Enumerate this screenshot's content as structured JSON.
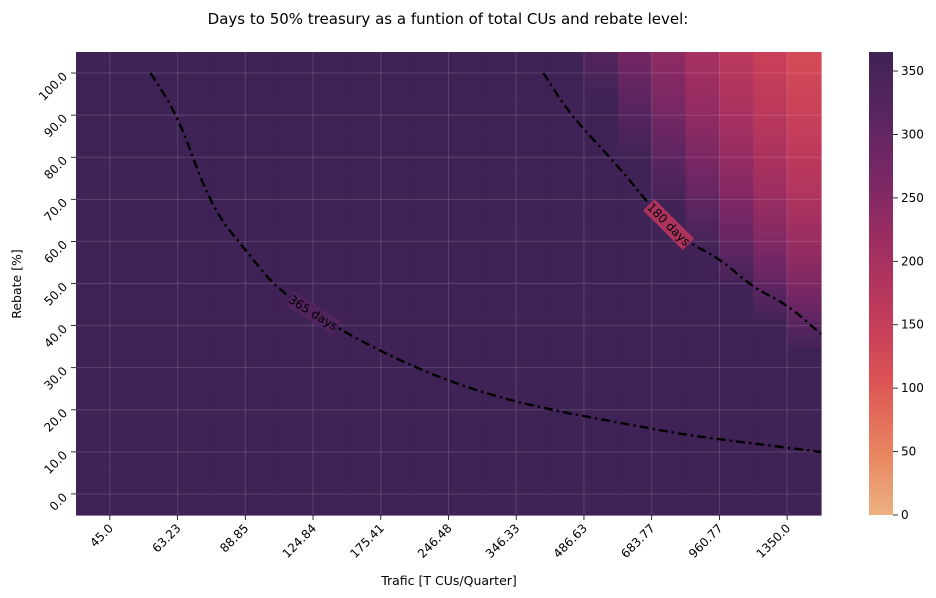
{
  "chart_data": {
    "type": "heatmap",
    "title": "Days to 50% treasury as a funtion of total CUs and rebate level:",
    "xlabel": "Trafic [T CUs/Quarter]",
    "ylabel": "Rebate [%]",
    "x_tick_labels": [
      "45.0",
      "63.23",
      "88.85",
      "124.84",
      "175.41",
      "246.48",
      "346.33",
      "486.63",
      "683.77",
      "960.77",
      "1350.0"
    ],
    "y_tick_labels": [
      "0.0",
      "10.0",
      "20.0",
      "30.0",
      "40.0",
      "50.0",
      "60.0",
      "70.0",
      "80.0",
      "90.0",
      "100.0"
    ],
    "colorbar": {
      "min": 0,
      "max": 365,
      "ticks": [
        "0",
        "50",
        "100",
        "150",
        "200",
        "250",
        "300",
        "350"
      ],
      "colors": [
        "#edb081",
        "#e8825f",
        "#dc5454",
        "#c23b5a",
        "#a12f61",
        "#7d2864",
        "#5a2561",
        "#3f2356"
      ]
    },
    "grid": true,
    "contours": [
      {
        "label": "365 days",
        "level": 365,
        "points": [
          [
            0.6,
            100
          ],
          [
            1.0,
            90
          ],
          [
            1.5,
            68
          ],
          [
            2.0,
            58
          ],
          [
            2.5,
            48
          ],
          [
            3.5,
            38
          ],
          [
            4.5,
            30
          ],
          [
            5.5,
            24
          ],
          [
            6.5,
            20
          ],
          [
            7.5,
            17
          ],
          [
            8.5,
            14
          ],
          [
            9.5,
            12
          ],
          [
            10.5,
            10
          ]
        ]
      },
      {
        "label": "180 days",
        "level": 180,
        "points": [
          [
            6.4,
            100
          ],
          [
            6.8,
            90
          ],
          [
            7.5,
            78
          ],
          [
            8.0,
            68
          ],
          [
            8.5,
            60
          ],
          [
            9.0,
            56
          ],
          [
            9.5,
            49
          ],
          [
            10.0,
            45
          ],
          [
            10.5,
            38
          ]
        ]
      }
    ]
  }
}
